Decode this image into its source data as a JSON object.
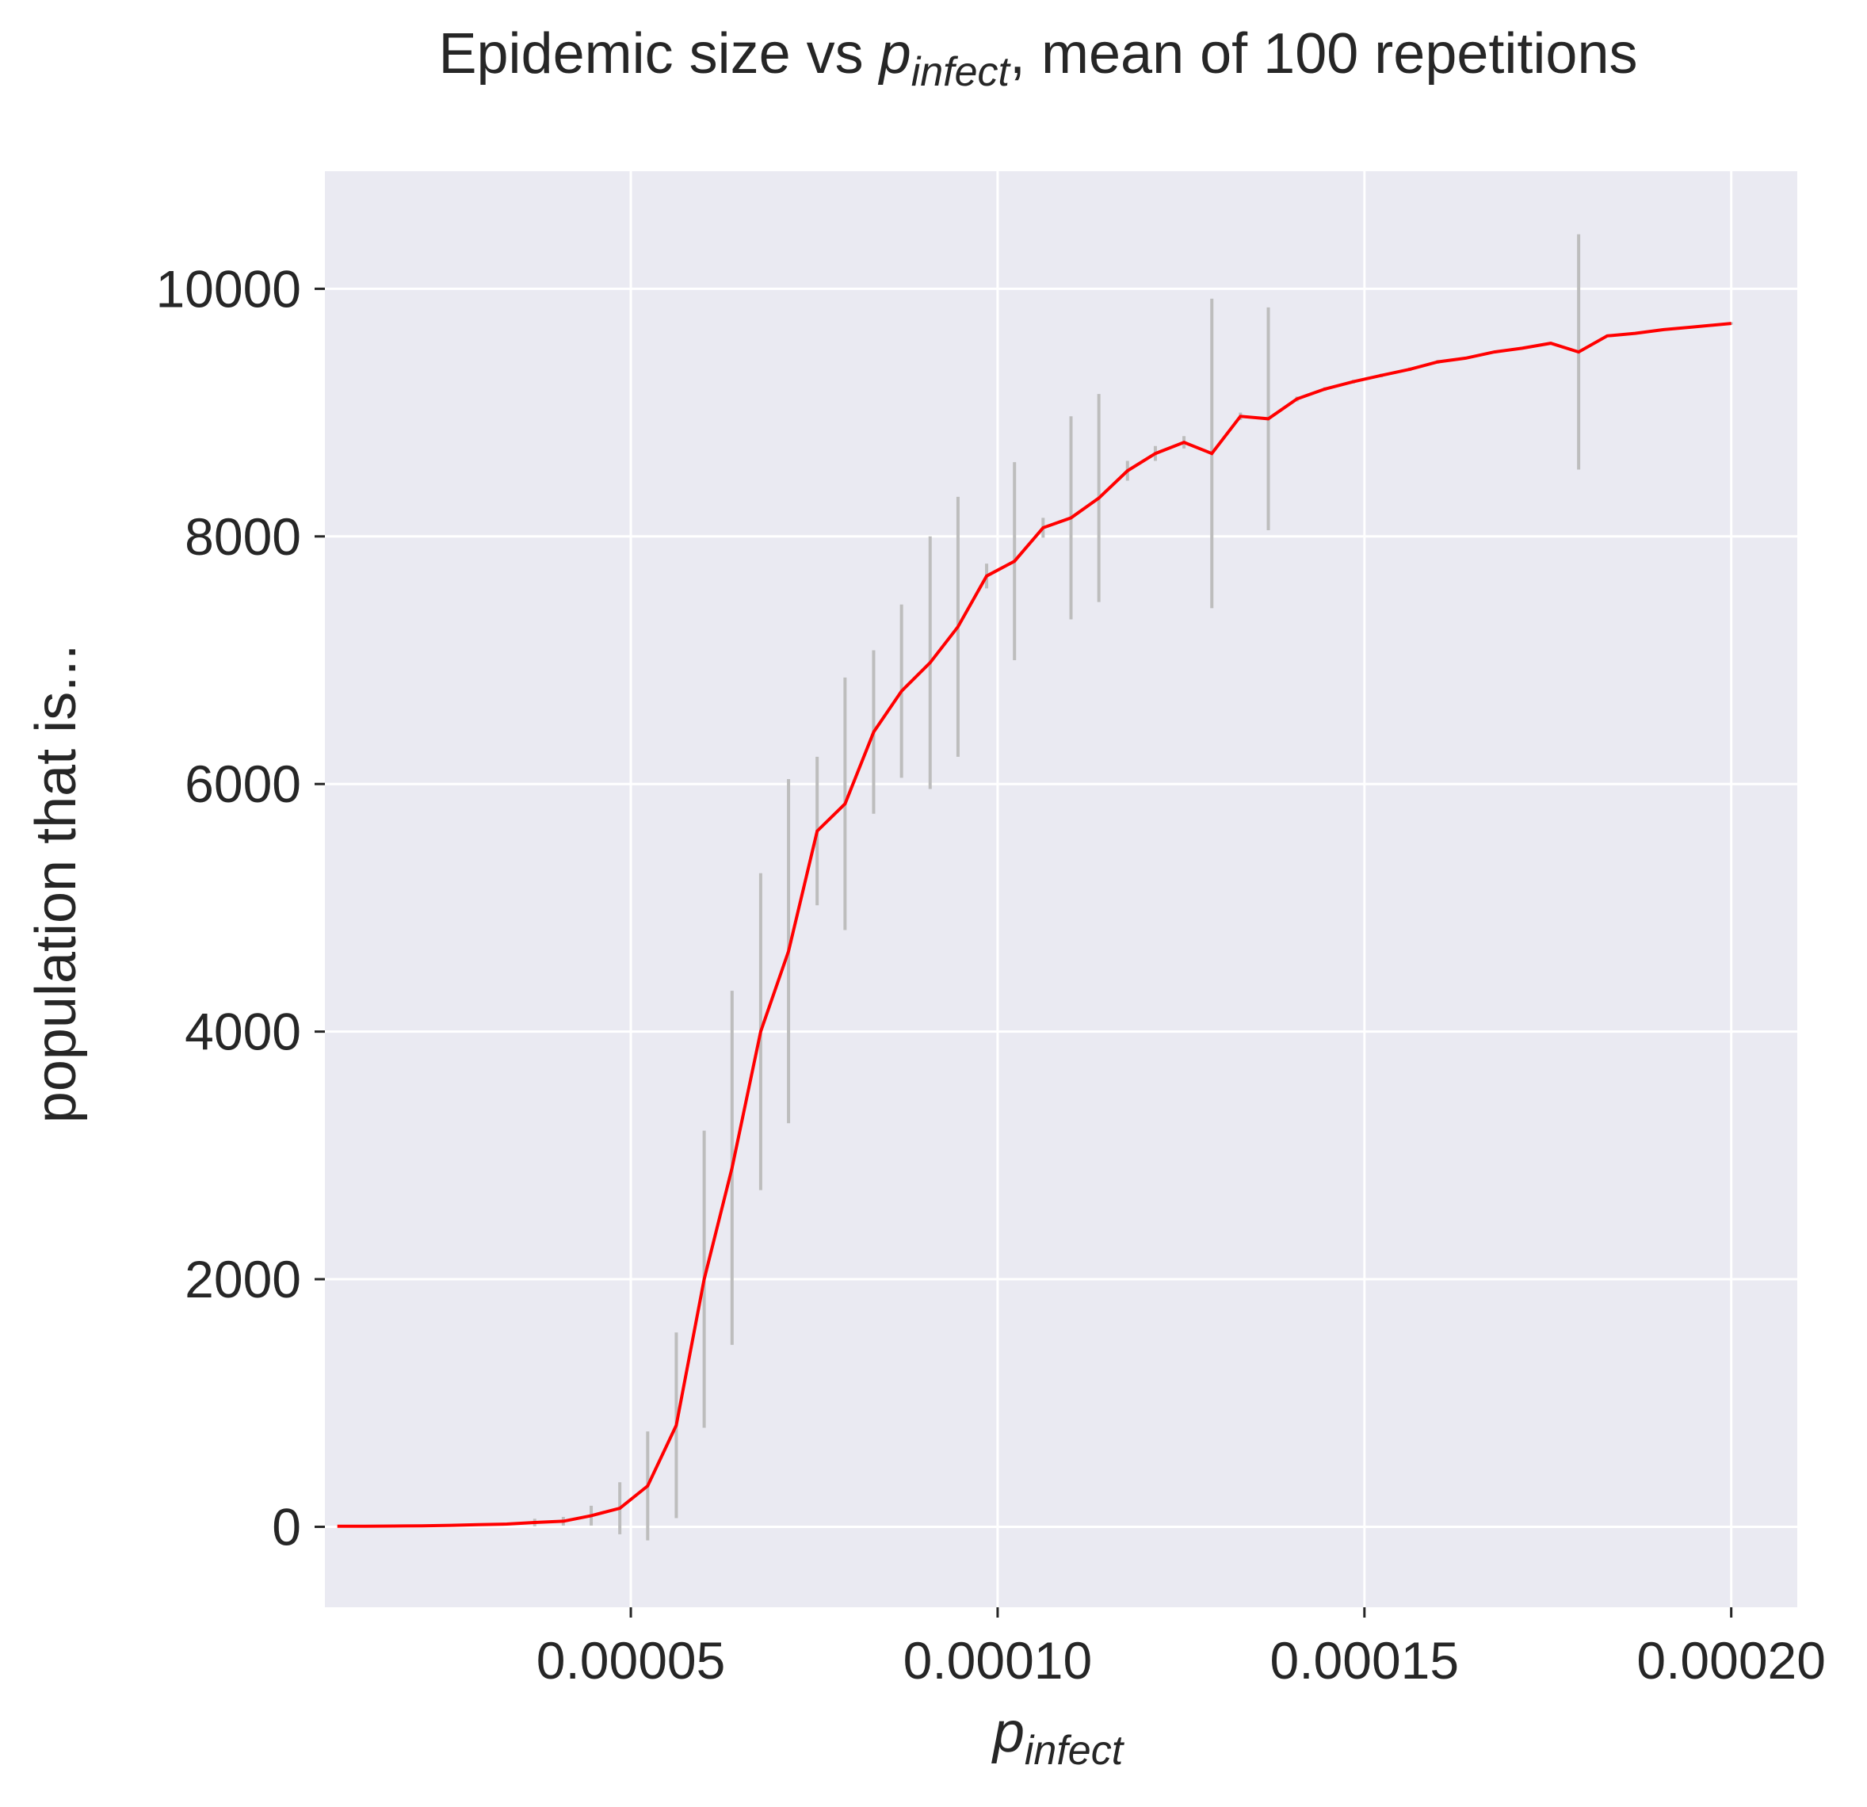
{
  "chart_data": {
    "type": "line",
    "title": {
      "prefix": "Epidemic size vs ",
      "var": "p",
      "sub": "infect",
      "suffix": ", mean of 100 repetitions"
    },
    "xlabel": {
      "var": "p",
      "sub": "infect"
    },
    "ylabel": "population that is...",
    "xlim": [
      8.3e-06,
      0.000209
    ],
    "ylim": [
      -650,
      10950
    ],
    "x_ticks": [
      {
        "value": 5e-05,
        "label": "0.00005"
      },
      {
        "value": 0.0001,
        "label": "0.00010"
      },
      {
        "value": 0.00015,
        "label": "0.00015"
      },
      {
        "value": 0.0002,
        "label": "0.00020"
      }
    ],
    "y_ticks": [
      {
        "value": 0,
        "label": "0"
      },
      {
        "value": 2000,
        "label": "2000"
      },
      {
        "value": 4000,
        "label": "4000"
      },
      {
        "value": 6000,
        "label": "6000"
      },
      {
        "value": 8000,
        "label": "8000"
      },
      {
        "value": 10000,
        "label": "10000"
      }
    ],
    "grid": true,
    "colors": {
      "background": "#eaeaf2",
      "grid": "#ffffff",
      "line": "#ff0000",
      "errorbar": "#bdbdbd"
    },
    "series": [
      {
        "x": [
          1e-05,
          1.38e-05,
          1.77e-05,
          2.15e-05,
          2.54e-05,
          2.92e-05,
          3.31e-05,
          3.69e-05,
          4.08e-05,
          4.46e-05,
          4.85e-05,
          5.23e-05,
          5.62e-05,
          6e-05,
          6.38e-05,
          6.77e-05,
          7.15e-05,
          7.54e-05,
          7.92e-05,
          8.31e-05,
          8.69e-05,
          9.08e-05,
          9.46e-05,
          9.85e-05,
          0.0001023,
          0.0001062,
          0.00011,
          0.0001138,
          0.0001177,
          0.0001215,
          0.0001254,
          0.0001292,
          0.0001331,
          0.0001369,
          0.0001408,
          0.0001446,
          0.0001485,
          0.0001523,
          0.0001562,
          0.00016,
          0.0001638,
          0.0001677,
          0.0001715,
          0.0001754,
          0.0001792,
          0.0001831,
          0.0001869,
          0.0001908,
          0.0001946,
          0.0002
        ],
        "y": [
          5,
          5,
          6,
          8,
          12,
          18,
          22,
          35,
          45,
          90,
          150,
          330,
          820,
          2000,
          2900,
          4000,
          4650,
          5620,
          5840,
          6420,
          6750,
          6980,
          7270,
          7680,
          7800,
          8070,
          8150,
          8310,
          8530,
          8670,
          8760,
          8670,
          8970,
          8950,
          9110,
          9190,
          9250,
          9300,
          9350,
          9410,
          9440,
          9490,
          9520,
          9560,
          9490,
          9620,
          9640,
          9670,
          9690,
          9720
        ],
        "errors": [
          0,
          0,
          0,
          0,
          0,
          0,
          0,
          30,
          35,
          80,
          210,
          440,
          750,
          1200,
          1430,
          1280,
          1390,
          600,
          1020,
          660,
          700,
          1020,
          1050,
          100,
          800,
          80,
          820,
          840,
          80,
          60,
          50,
          1250,
          30,
          900,
          20,
          15,
          15,
          15,
          15,
          15,
          10,
          10,
          10,
          10,
          950,
          10,
          10,
          10,
          10,
          10
        ]
      }
    ]
  }
}
